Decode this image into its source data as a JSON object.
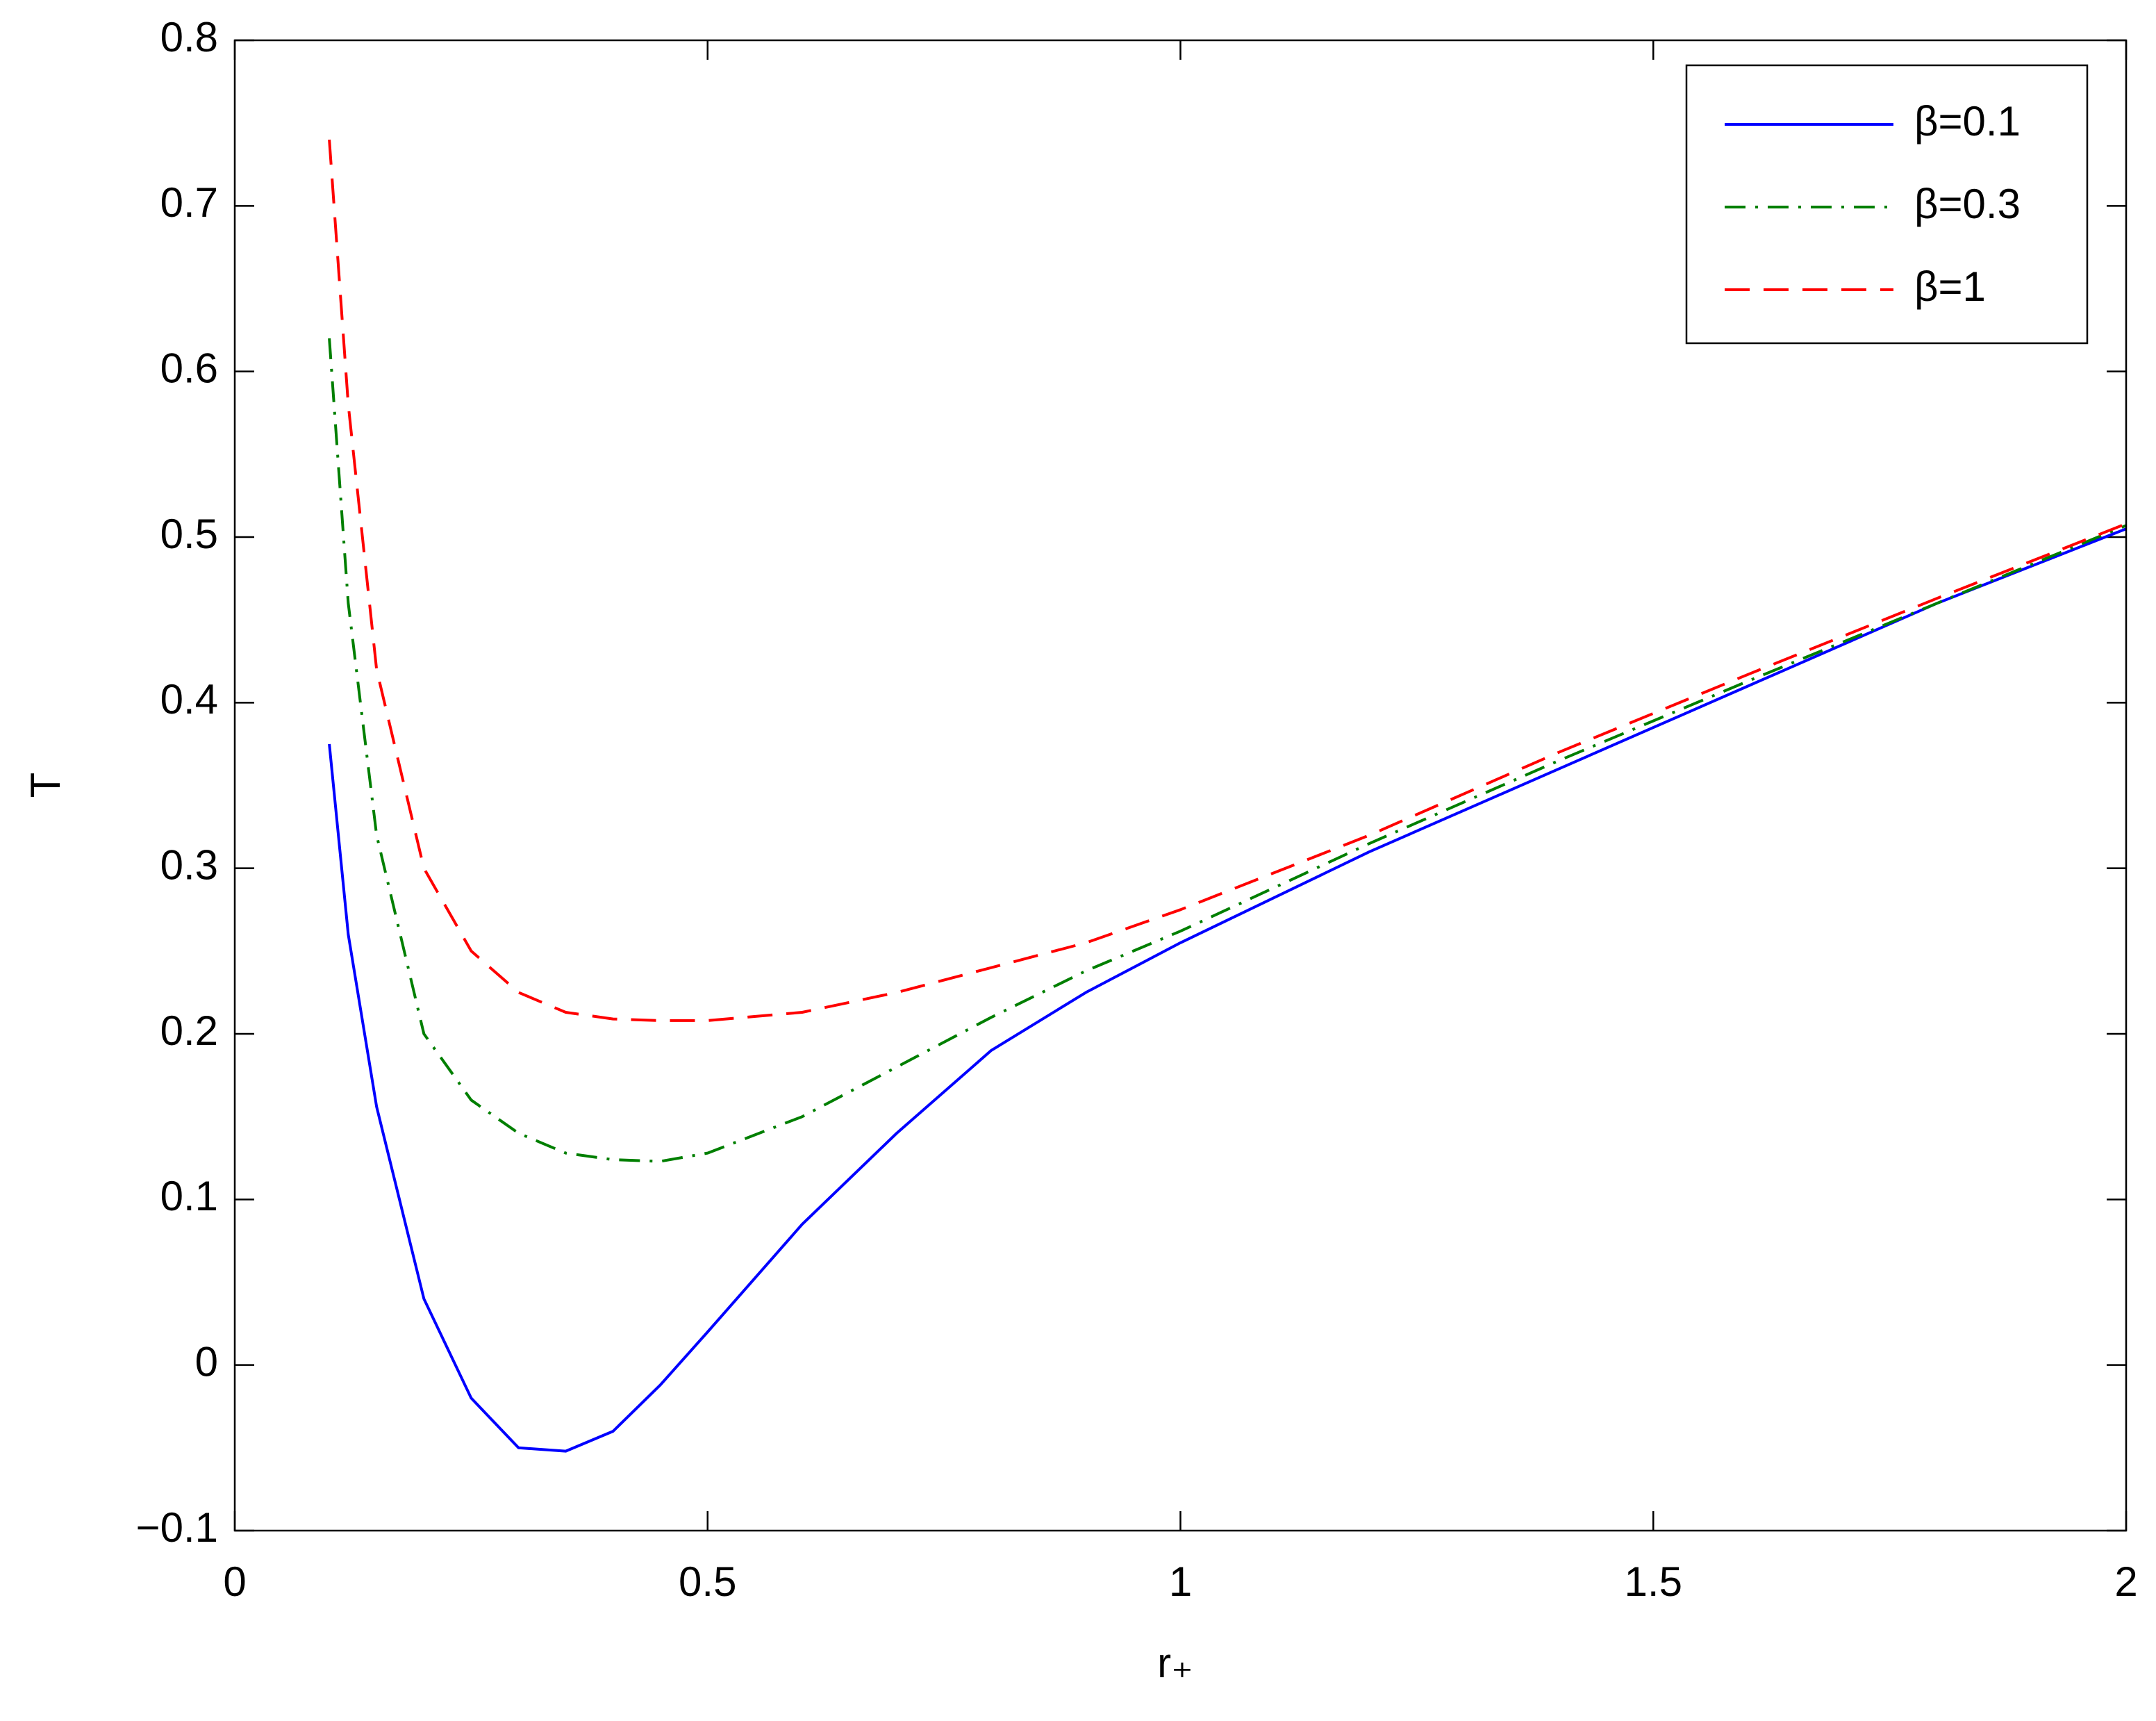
{
  "chart_data": {
    "type": "line",
    "xlabel": "r₊",
    "ylabel": "T",
    "x": [
      0.1,
      0.12,
      0.15,
      0.2,
      0.25,
      0.3,
      0.35,
      0.4,
      0.45,
      0.5,
      0.6,
      0.7,
      0.8,
      0.9,
      1.0,
      1.2,
      1.4,
      1.6,
      1.8,
      2.0
    ],
    "series": [
      {
        "name": "β=0.1",
        "color": "#0000ff",
        "style": "solid",
        "values": [
          0.375,
          0.26,
          0.156,
          0.04,
          -0.02,
          -0.05,
          -0.052,
          -0.04,
          -0.012,
          0.02,
          0.085,
          0.14,
          0.19,
          0.225,
          0.255,
          0.31,
          0.36,
          0.41,
          0.46,
          0.505
        ]
      },
      {
        "name": "β=0.3",
        "color": "#007f00",
        "style": "dashdot",
        "values": [
          0.62,
          0.46,
          0.32,
          0.2,
          0.16,
          0.14,
          0.128,
          0.124,
          0.123,
          0.128,
          0.15,
          0.18,
          0.21,
          0.238,
          0.262,
          0.315,
          0.365,
          0.413,
          0.46,
          0.507
        ]
      },
      {
        "name": "β=1",
        "color": "#ff0000",
        "style": "dashed",
        "values": [
          0.74,
          0.58,
          0.42,
          0.3,
          0.25,
          0.225,
          0.213,
          0.209,
          0.208,
          0.208,
          0.213,
          0.225,
          0.24,
          0.255,
          0.275,
          0.32,
          0.37,
          0.417,
          0.463,
          0.508
        ]
      }
    ],
    "xlim": [
      0,
      2
    ],
    "xticks": [
      0,
      0.5,
      1,
      1.5,
      2
    ],
    "ylim": [
      -0.1,
      0.8
    ],
    "yticks": [
      {
        "value": -0.1,
        "label": "−0.1"
      },
      0,
      0.1,
      0.2,
      0.3,
      0.4,
      0.5,
      0.6,
      0.7,
      0.8
    ],
    "legend": "top-right",
    "grid": false
  }
}
